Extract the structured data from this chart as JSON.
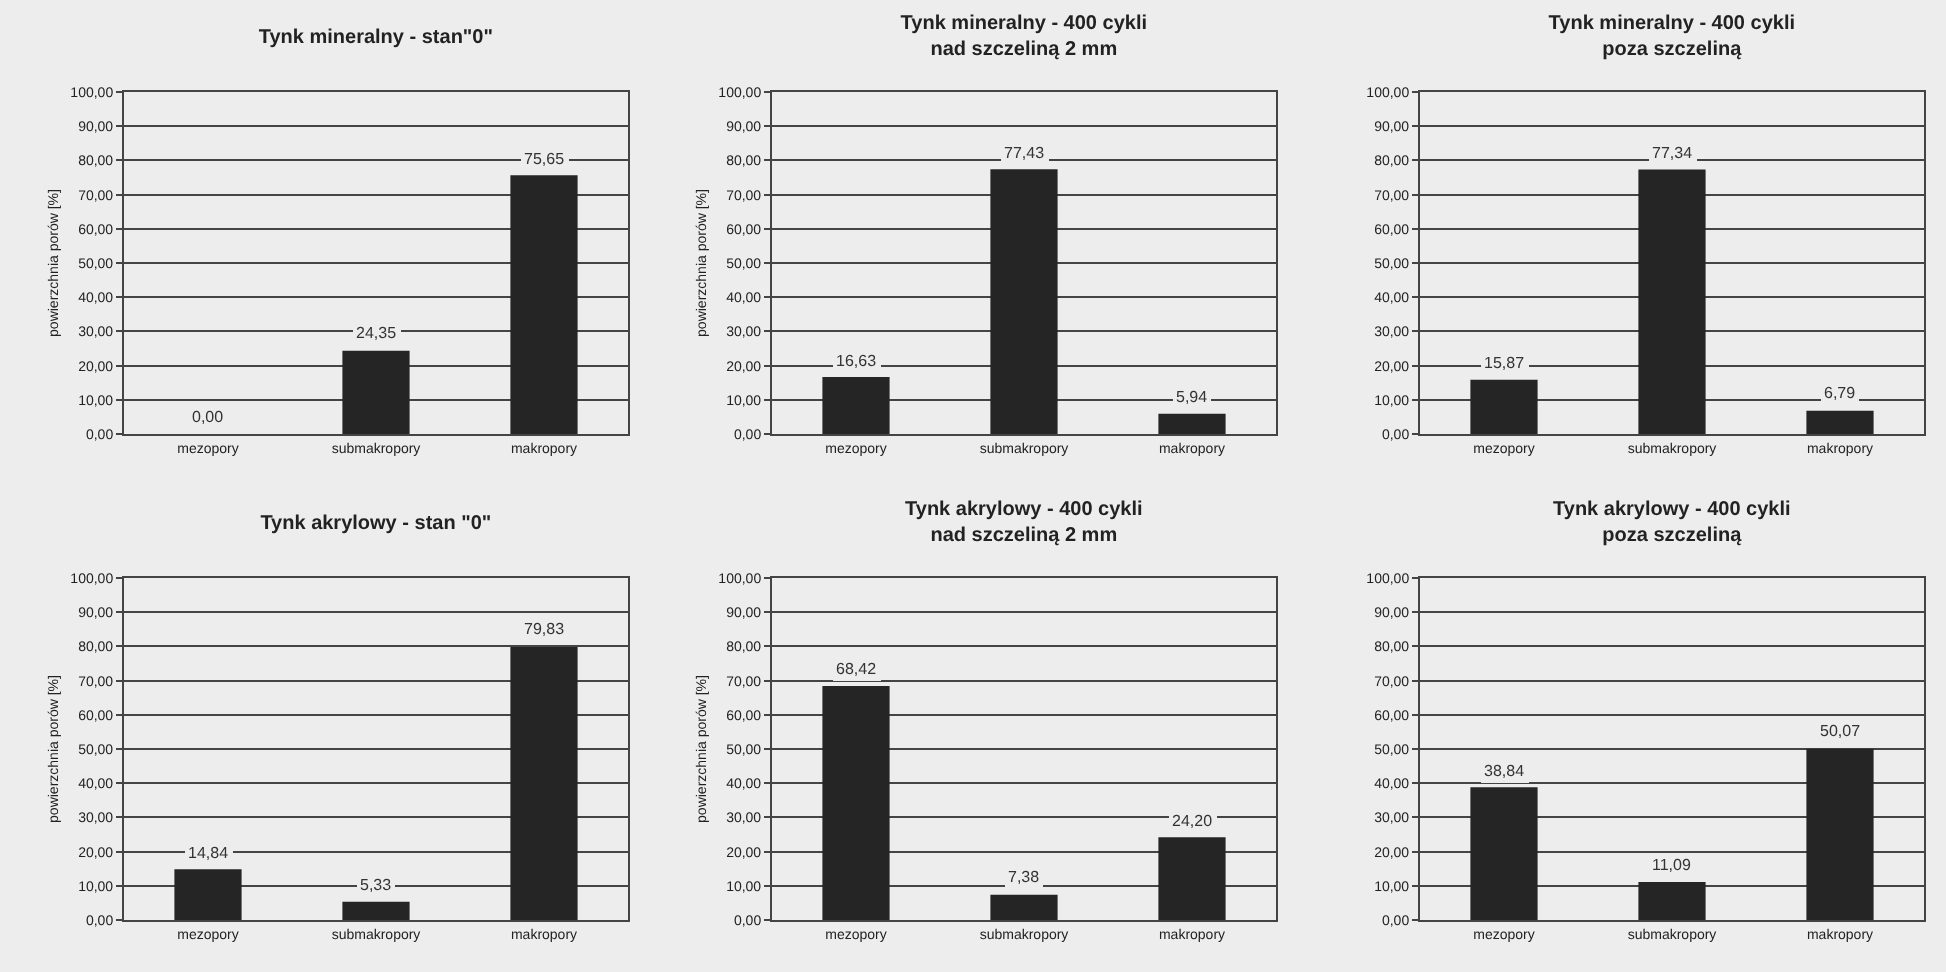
{
  "chart_data": [
    {
      "type": "bar",
      "title": "Tynk mineralny - stan\"0\"",
      "ylabel": "powierzchnia porów [%]",
      "categories": [
        "mezopory",
        "submakropory",
        "makropory"
      ],
      "values": [
        0.0,
        24.35,
        75.65
      ],
      "value_labels": [
        "0,00",
        "24,35",
        "75,65"
      ],
      "color": "#252525",
      "ylim": [
        0,
        100
      ],
      "yticks": [
        {
          "value": 0,
          "label": "0,00"
        },
        {
          "value": 10,
          "label": "10,00"
        },
        {
          "value": 20,
          "label": "20,00"
        },
        {
          "value": 30,
          "label": "30,00"
        },
        {
          "value": 40,
          "label": "40,00"
        },
        {
          "value": 50,
          "label": "50,00"
        },
        {
          "value": 60,
          "label": "60,00"
        },
        {
          "value": 70,
          "label": "70,00"
        },
        {
          "value": 80,
          "label": "80,00"
        },
        {
          "value": 90,
          "label": "90,00"
        },
        {
          "value": 100,
          "label": "100,00"
        }
      ],
      "grid": "y"
    },
    {
      "type": "bar",
      "title": "Tynk mineralny - 400 cykli",
      "subtitle": "nad szczeliną 2 mm",
      "ylabel": "powierzchnia porów [%]",
      "categories": [
        "mezopory",
        "submakropory",
        "makropory"
      ],
      "values": [
        16.63,
        77.43,
        5.94
      ],
      "value_labels": [
        "16,63",
        "77,43",
        "5,94"
      ],
      "color": "#252525",
      "ylim": [
        0,
        100
      ],
      "yticks": [
        {
          "value": 0,
          "label": "0,00"
        },
        {
          "value": 10,
          "label": "10,00"
        },
        {
          "value": 20,
          "label": "20,00"
        },
        {
          "value": 30,
          "label": "30,00"
        },
        {
          "value": 40,
          "label": "40,00"
        },
        {
          "value": 50,
          "label": "50,00"
        },
        {
          "value": 60,
          "label": "60,00"
        },
        {
          "value": 70,
          "label": "70,00"
        },
        {
          "value": 80,
          "label": "80,00"
        },
        {
          "value": 90,
          "label": "90,00"
        },
        {
          "value": 100,
          "label": "100,00"
        }
      ],
      "grid": "y"
    },
    {
      "type": "bar",
      "title": "Tynk mineralny - 400 cykli",
      "subtitle": "poza szczeliną",
      "categories": [
        "mezopory",
        "submakropory",
        "makropory"
      ],
      "values": [
        15.87,
        77.34,
        6.79
      ],
      "value_labels": [
        "15,87",
        "77,34",
        "6,79"
      ],
      "color": "#252525",
      "ylim": [
        0,
        100
      ],
      "yticks": [
        {
          "value": 0,
          "label": "0,00"
        },
        {
          "value": 10,
          "label": "10,00"
        },
        {
          "value": 20,
          "label": "20,00"
        },
        {
          "value": 30,
          "label": "30,00"
        },
        {
          "value": 40,
          "label": "40,00"
        },
        {
          "value": 50,
          "label": "50,00"
        },
        {
          "value": 60,
          "label": "60,00"
        },
        {
          "value": 70,
          "label": "70,00"
        },
        {
          "value": 80,
          "label": "80,00"
        },
        {
          "value": 90,
          "label": "90,00"
        },
        {
          "value": 100,
          "label": "100,00"
        }
      ],
      "grid": "y"
    },
    {
      "type": "bar",
      "title": "Tynk akrylowy - stan \"0\"",
      "ylabel": "powierzchnia porów [%]",
      "categories": [
        "mezopory",
        "submakropory",
        "makropory"
      ],
      "values": [
        14.84,
        5.33,
        79.83
      ],
      "value_labels": [
        "14,84",
        "5,33",
        "79,83"
      ],
      "color": "#252525",
      "ylim": [
        0,
        100
      ],
      "yticks": [
        {
          "value": 0,
          "label": "0,00"
        },
        {
          "value": 10,
          "label": "10,00"
        },
        {
          "value": 20,
          "label": "20,00"
        },
        {
          "value": 30,
          "label": "30,00"
        },
        {
          "value": 40,
          "label": "40,00"
        },
        {
          "value": 50,
          "label": "50,00"
        },
        {
          "value": 60,
          "label": "60,00"
        },
        {
          "value": 70,
          "label": "70,00"
        },
        {
          "value": 80,
          "label": "80,00"
        },
        {
          "value": 90,
          "label": "90,00"
        },
        {
          "value": 100,
          "label": "100,00"
        }
      ],
      "grid": "y"
    },
    {
      "type": "bar",
      "title": "Tynk akrylowy - 400 cykli",
      "subtitle": "nad szczeliną 2 mm",
      "ylabel": "powierzchnia porów [%]",
      "categories": [
        "mezopory",
        "submakropory",
        "makropory"
      ],
      "values": [
        68.42,
        7.38,
        24.2
      ],
      "value_labels": [
        "68,42",
        "7,38",
        "24,20"
      ],
      "color": "#252525",
      "ylim": [
        0,
        100
      ],
      "yticks": [
        {
          "value": 0,
          "label": "0,00"
        },
        {
          "value": 10,
          "label": "10,00"
        },
        {
          "value": 20,
          "label": "20,00"
        },
        {
          "value": 30,
          "label": "30,00"
        },
        {
          "value": 40,
          "label": "40,00"
        },
        {
          "value": 50,
          "label": "50,00"
        },
        {
          "value": 60,
          "label": "60,00"
        },
        {
          "value": 70,
          "label": "70,00"
        },
        {
          "value": 80,
          "label": "80,00"
        },
        {
          "value": 90,
          "label": "90,00"
        },
        {
          "value": 100,
          "label": "100,00"
        }
      ],
      "grid": "y"
    },
    {
      "type": "bar",
      "title": "Tynk akrylowy - 400 cykli",
      "subtitle": "poza szczeliną",
      "categories": [
        "mezopory",
        "submakropory",
        "makropory"
      ],
      "values": [
        38.84,
        11.09,
        50.07
      ],
      "value_labels": [
        "38,84",
        "11,09",
        "50,07"
      ],
      "color": "#252525",
      "ylim": [
        0,
        100
      ],
      "yticks": [
        {
          "value": 0,
          "label": "0,00"
        },
        {
          "value": 10,
          "label": "10,00"
        },
        {
          "value": 20,
          "label": "20,00"
        },
        {
          "value": 30,
          "label": "30,00"
        },
        {
          "value": 40,
          "label": "40,00"
        },
        {
          "value": 50,
          "label": "50,00"
        },
        {
          "value": 60,
          "label": "60,00"
        },
        {
          "value": 70,
          "label": "70,00"
        },
        {
          "value": 80,
          "label": "80,00"
        },
        {
          "value": 90,
          "label": "90,00"
        },
        {
          "value": 100,
          "label": "100,00"
        }
      ],
      "grid": "y"
    }
  ]
}
